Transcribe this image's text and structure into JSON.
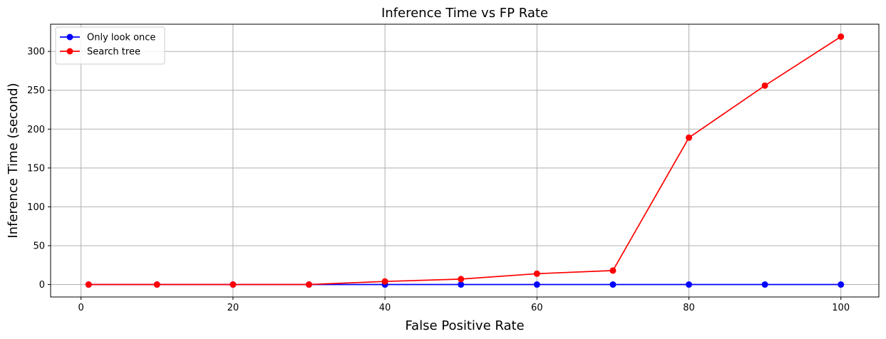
{
  "chart_data": {
    "type": "line",
    "title": "Inference Time  vs FP Rate",
    "xlabel": "False Positive Rate",
    "ylabel": "Inference Time (second)",
    "xlim": [
      -4,
      105
    ],
    "ylim": [
      -16,
      335
    ],
    "xticks": [
      0,
      20,
      40,
      60,
      80,
      100
    ],
    "yticks": [
      0,
      50,
      100,
      150,
      200,
      250,
      300
    ],
    "grid": true,
    "legend_position": "top-left",
    "x": [
      1,
      10,
      20,
      30,
      40,
      50,
      60,
      70,
      80,
      90,
      100
    ],
    "series": [
      {
        "name": "Only look once",
        "color": "#0000ff",
        "values": [
          0,
          0,
          0,
          0,
          0,
          0,
          0,
          0,
          0,
          0,
          0
        ]
      },
      {
        "name": "Search tree",
        "color": "#ff0000",
        "values": [
          0,
          0,
          0,
          0,
          4,
          7,
          14,
          18,
          189,
          256,
          319
        ]
      }
    ]
  }
}
